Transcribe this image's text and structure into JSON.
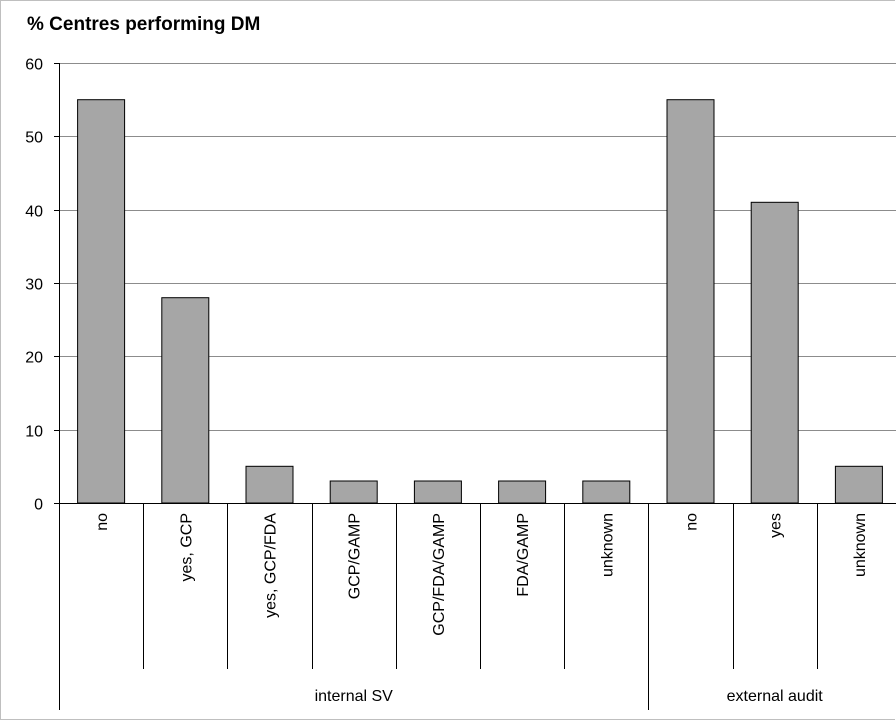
{
  "chart_data": {
    "type": "bar",
    "title": "% Centres performing DM",
    "xlabel": "",
    "ylabel": "",
    "ylim": [
      0,
      60
    ],
    "yticks": [
      "0",
      "10",
      "20",
      "30",
      "40",
      "50",
      "60"
    ],
    "grid": true,
    "legend": "none",
    "bar_color": "#a6a6a6",
    "bar_edge_color": "#000000",
    "categories": [
      "no",
      "yes, GCP",
      "yes, GCP/FDA",
      "GCP/GAMP",
      "GCP/FDA/GAMP",
      "FDA/GAMP",
      "unknown",
      "no",
      "yes",
      "unknown"
    ],
    "values": [
      55,
      28,
      5,
      3,
      3,
      3,
      3,
      55,
      41,
      5
    ],
    "groups": [
      {
        "label": "internal SV",
        "count": 7
      },
      {
        "label": "external audit",
        "count": 3
      }
    ]
  }
}
